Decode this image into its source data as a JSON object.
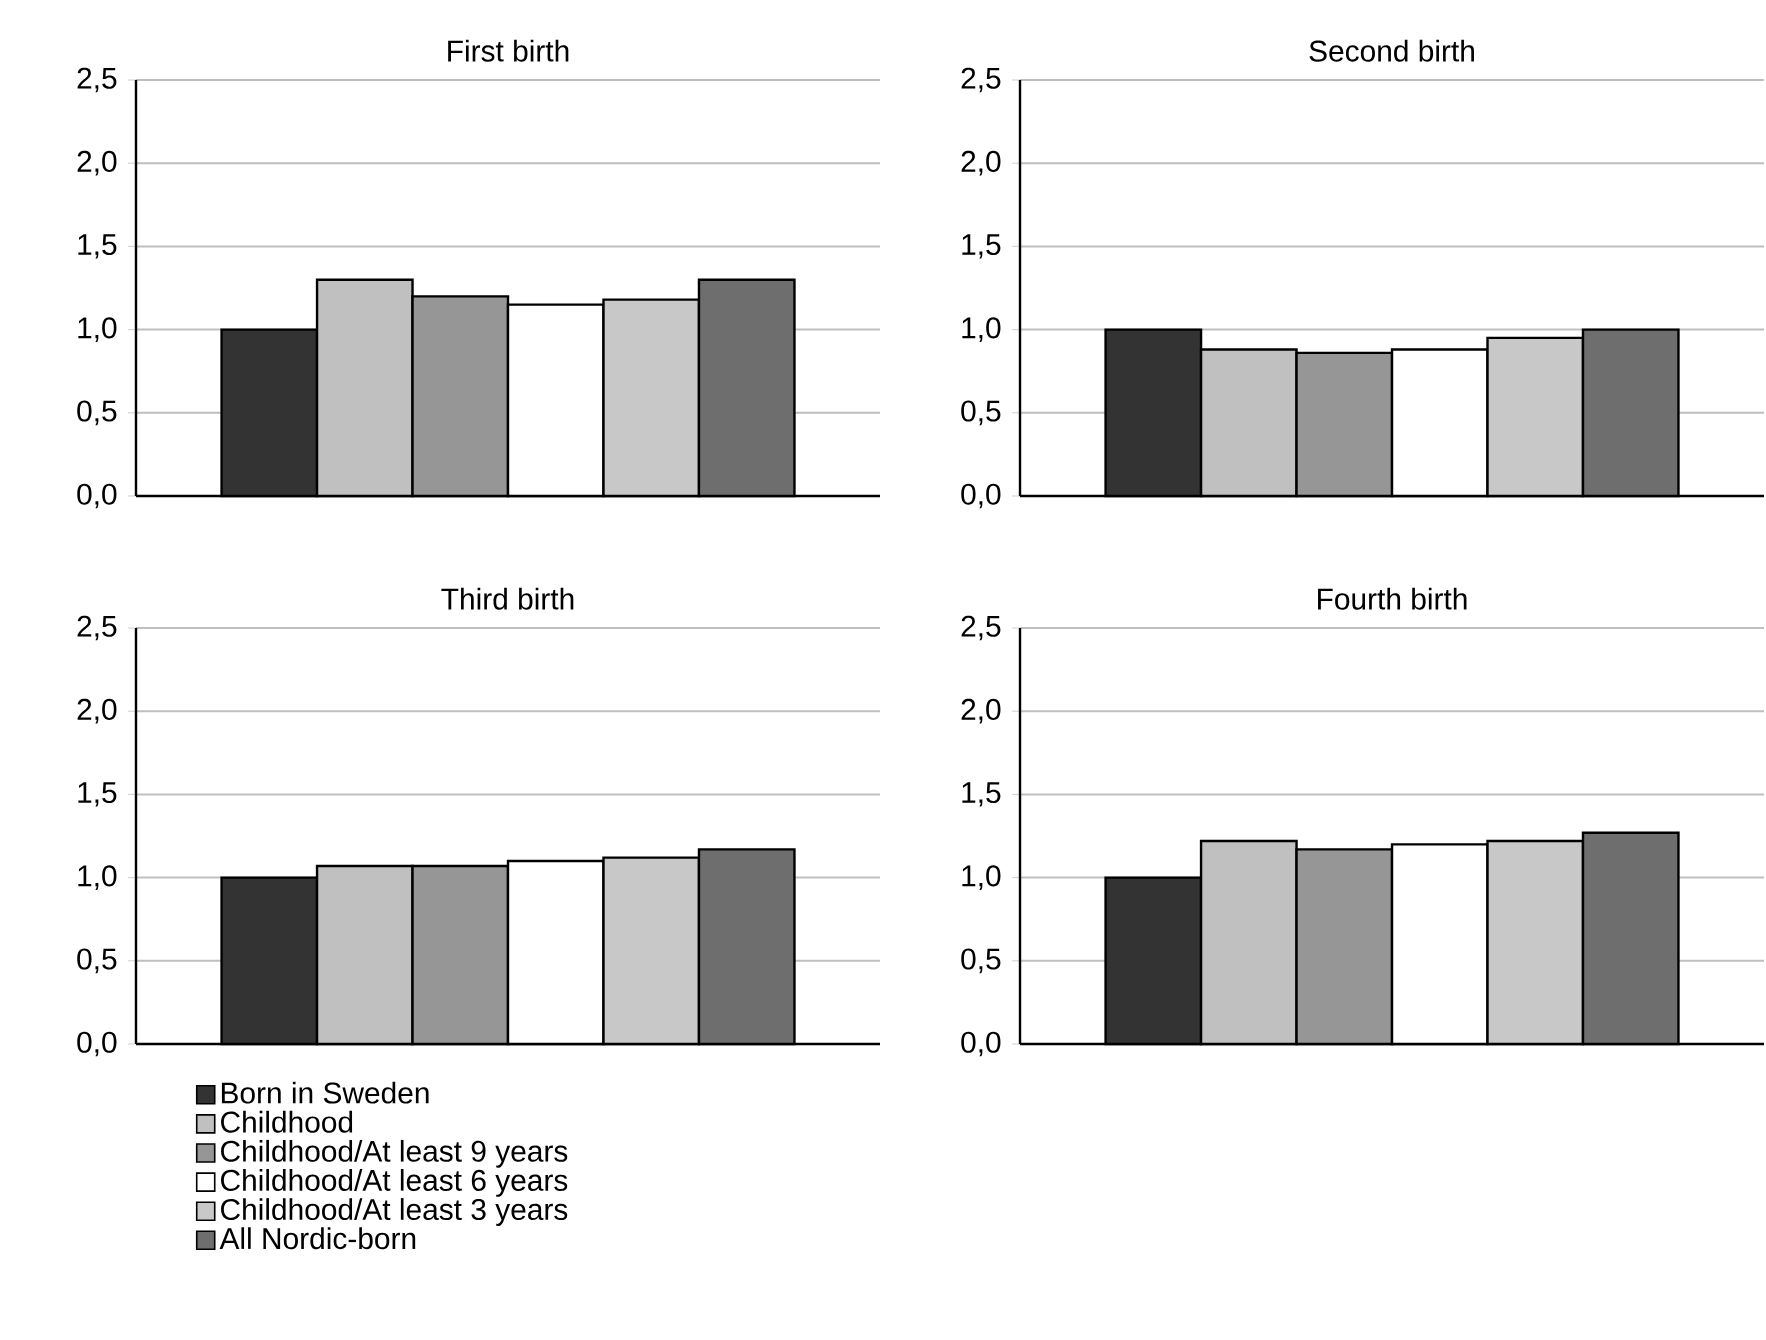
{
  "chart_data": [
    {
      "type": "bar",
      "title": "First birth",
      "categories": [
        null
      ],
      "ylim": [
        0,
        2.5
      ],
      "yticks": [
        {
          "value": 0,
          "label": "0,0"
        },
        {
          "value": 0.5,
          "label": "0,5"
        },
        {
          "value": 1,
          "label": "1,0"
        },
        {
          "value": 1.5,
          "label": "1,5"
        },
        {
          "value": 2,
          "label": "2,0"
        },
        {
          "value": 2.5,
          "label": "2,5"
        }
      ],
      "grid": "y",
      "series": [
        {
          "color": "#333333",
          "values": [
            1.0
          ]
        },
        {
          "color": "#c0c0c0",
          "values": [
            1.3
          ]
        },
        {
          "color": "#969696",
          "values": [
            1.2
          ]
        },
        {
          "color": "#ffffff",
          "values": [
            1.15
          ]
        },
        {
          "color": "#c8c8c8",
          "values": [
            1.18
          ]
        },
        {
          "color": "#6e6e6e",
          "values": [
            1.3
          ]
        }
      ]
    },
    {
      "type": "bar",
      "title": "Second birth",
      "categories": [
        null
      ],
      "ylim": [
        0,
        2.5
      ],
      "yticks": [
        {
          "value": 0,
          "label": "0,0"
        },
        {
          "value": 0.5,
          "label": "0,5"
        },
        {
          "value": 1,
          "label": "1,0"
        },
        {
          "value": 1.5,
          "label": "1,5"
        },
        {
          "value": 2,
          "label": "2,0"
        },
        {
          "value": 2.5,
          "label": "2,5"
        }
      ],
      "grid": "y",
      "series": [
        {
          "color": "#333333",
          "values": [
            1.0
          ]
        },
        {
          "color": "#c0c0c0",
          "values": [
            0.88
          ]
        },
        {
          "color": "#969696",
          "values": [
            0.86
          ]
        },
        {
          "color": "#ffffff",
          "values": [
            0.88
          ]
        },
        {
          "color": "#c8c8c8",
          "values": [
            0.95
          ]
        },
        {
          "color": "#6e6e6e",
          "values": [
            1.0
          ]
        }
      ]
    },
    {
      "type": "bar",
      "title": "Third birth",
      "categories": [
        null
      ],
      "ylim": [
        0,
        2.5
      ],
      "yticks": [
        {
          "value": 0,
          "label": "0,0"
        },
        {
          "value": 0.5,
          "label": "0,5"
        },
        {
          "value": 1,
          "label": "1,0"
        },
        {
          "value": 1.5,
          "label": "1,5"
        },
        {
          "value": 2,
          "label": "2,0"
        },
        {
          "value": 2.5,
          "label": "2,5"
        }
      ],
      "grid": "y",
      "legend": "bottom",
      "series": [
        {
          "name": "Born in Sweden",
          "color": "#333333",
          "values": [
            1.0
          ]
        },
        {
          "name": "Childhood",
          "color": "#c0c0c0",
          "values": [
            1.07
          ]
        },
        {
          "name": "Childhood/At least 9 years",
          "color": "#969696",
          "values": [
            1.07
          ]
        },
        {
          "name": "Childhood/At least 6 years",
          "color": "#ffffff",
          "values": [
            1.1
          ]
        },
        {
          "name": "Childhood/At least 3 years",
          "color": "#c8c8c8",
          "values": [
            1.12
          ]
        },
        {
          "name": "All Nordic-born",
          "color": "#6e6e6e",
          "values": [
            1.17
          ]
        }
      ]
    },
    {
      "type": "bar",
      "title": "Fourth birth",
      "categories": [
        null
      ],
      "ylim": [
        0,
        2.5
      ],
      "yticks": [
        {
          "value": 0,
          "label": "0,0"
        },
        {
          "value": 0.5,
          "label": "0,5"
        },
        {
          "value": 1,
          "label": "1,0"
        },
        {
          "value": 1.5,
          "label": "1,5"
        },
        {
          "value": 2,
          "label": "2,0"
        },
        {
          "value": 2.5,
          "label": "2,5"
        }
      ],
      "grid": "y",
      "series": [
        {
          "color": "#333333",
          "values": [
            1.0
          ]
        },
        {
          "color": "#c0c0c0",
          "values": [
            1.22
          ]
        },
        {
          "color": "#969696",
          "values": [
            1.17
          ]
        },
        {
          "color": "#ffffff",
          "values": [
            1.2
          ]
        },
        {
          "color": "#c8c8c8",
          "values": [
            1.22
          ]
        },
        {
          "color": "#6e6e6e",
          "values": [
            1.27
          ]
        }
      ]
    }
  ]
}
